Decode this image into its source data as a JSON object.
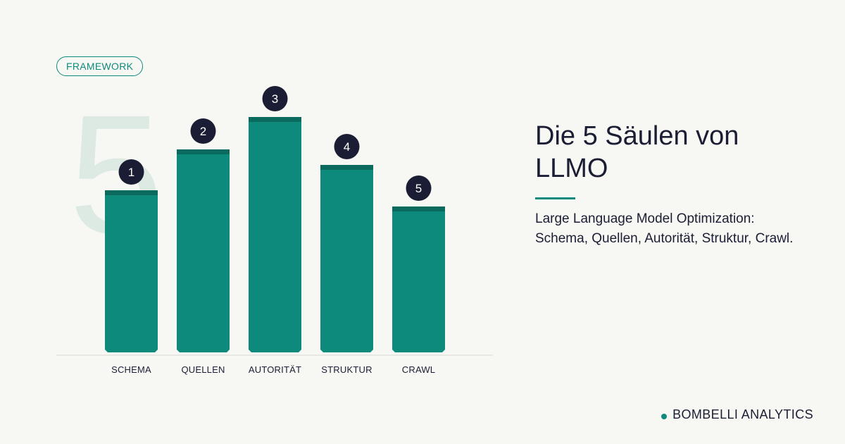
{
  "tag": {
    "label": "FRAMEWORK"
  },
  "chart_data": {
    "type": "bar",
    "categories": [
      "SCHEMA",
      "QUELLEN",
      "AUTORITÄT",
      "STRUKTUR",
      "CRAWL"
    ],
    "values": [
      230,
      288,
      334,
      266,
      207
    ],
    "badges": [
      "1",
      "2",
      "3",
      "4",
      "5"
    ],
    "ylim": [
      0,
      400
    ],
    "watermark": "5",
    "colors": {
      "bar": "#0e8a7c",
      "bar_cap": "#0b6a5e",
      "badge": "#1b1d34",
      "watermark": "#dde9e3"
    }
  },
  "title": "Die 5 Säulen von LLMO",
  "subtitle": "Large Language Model Optimization: Schema, Quellen, Autorität, Struktur, Crawl.",
  "brand": {
    "label": "BOMBELLI ANALYTICS"
  },
  "colors": {
    "background": "#f7f8f3",
    "accent": "#0e8a7c",
    "text": "#1b1d34"
  }
}
